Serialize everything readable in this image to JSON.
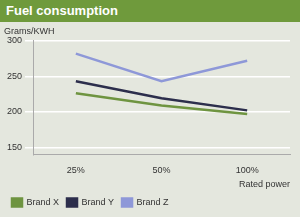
{
  "chart_data": {
    "type": "line",
    "title": "Fuel consumption",
    "y_label": "Grams/KWH",
    "x_label": "Rated power",
    "categories": [
      "25%",
      "50%",
      "100%"
    ],
    "series": [
      {
        "name": "Brand X",
        "color": "#6e9440",
        "values": [
          226,
          209,
          197
        ]
      },
      {
        "name": "Brand Y",
        "color": "#2c2e4c",
        "values": [
          243,
          219,
          202
        ]
      },
      {
        "name": "Brand Z",
        "color": "#8e98d8",
        "values": [
          282,
          243,
          272
        ]
      }
    ],
    "ylim": [
      140,
      300
    ],
    "yticks": [
      150,
      200,
      250,
      300
    ],
    "grid": true,
    "legend": "bottom"
  }
}
